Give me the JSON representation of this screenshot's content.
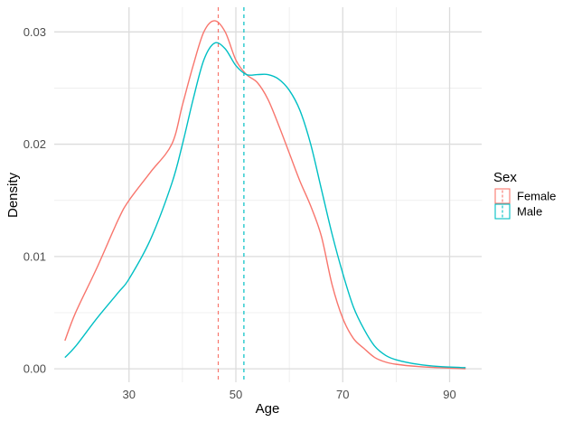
{
  "chart_data": {
    "type": "line",
    "title": "",
    "xlabel": "Age",
    "ylabel": "Density",
    "xlim": [
      16,
      96
    ],
    "ylim": [
      -0.0012,
      0.0322
    ],
    "x_ticks": [
      30,
      50,
      70,
      90
    ],
    "y_ticks": [
      0.0,
      0.01,
      0.02,
      0.03
    ],
    "y_tick_labels": [
      "0.00",
      "0.01",
      "0.02",
      "0.03"
    ],
    "grid": true,
    "legend": {
      "title": "Sex",
      "placement": "right"
    },
    "series": [
      {
        "name": "Female",
        "color": "#F8766D",
        "mean_line": 46.7,
        "x": [
          18,
          20,
          24,
          28,
          30,
          34,
          38,
          40,
          42,
          44,
          46,
          48,
          50,
          52,
          54,
          56,
          58,
          60,
          62,
          64,
          66,
          68,
          70,
          72,
          74,
          76,
          78,
          80,
          84,
          88,
          93
        ],
        "y": [
          0.0025,
          0.005,
          0.009,
          0.0133,
          0.015,
          0.0175,
          0.02,
          0.0235,
          0.027,
          0.03,
          0.031,
          0.03,
          0.0275,
          0.0262,
          0.0255,
          0.024,
          0.0217,
          0.0192,
          0.0167,
          0.0145,
          0.0118,
          0.0075,
          0.0045,
          0.0027,
          0.0018,
          0.001,
          0.0006,
          0.0004,
          0.0002,
          0.0001,
          0.0
        ]
      },
      {
        "name": "Male",
        "color": "#00BFC4",
        "mean_line": 51.5,
        "x": [
          18,
          20,
          24,
          28,
          30,
          34,
          38,
          40,
          42,
          44,
          46,
          48,
          50,
          52,
          54,
          56,
          58,
          60,
          62,
          64,
          66,
          68,
          70,
          72,
          74,
          76,
          78,
          80,
          84,
          88,
          93
        ],
        "y": [
          0.001,
          0.002,
          0.0045,
          0.0068,
          0.008,
          0.0115,
          0.0165,
          0.02,
          0.024,
          0.0275,
          0.029,
          0.0285,
          0.027,
          0.0262,
          0.0262,
          0.0262,
          0.0258,
          0.0248,
          0.023,
          0.02,
          0.016,
          0.012,
          0.0085,
          0.0055,
          0.0035,
          0.002,
          0.0012,
          0.0008,
          0.0004,
          0.0002,
          0.0001
        ]
      }
    ]
  }
}
